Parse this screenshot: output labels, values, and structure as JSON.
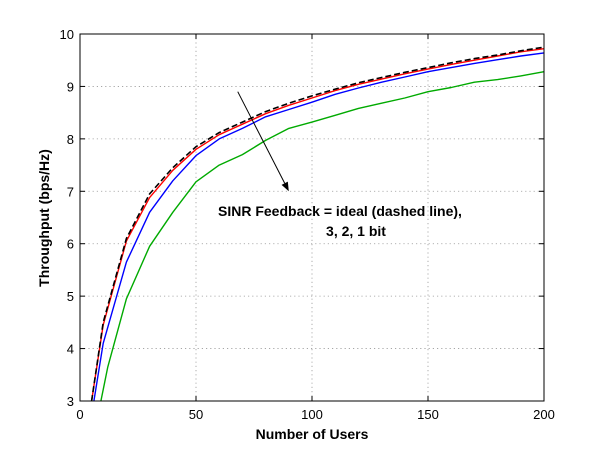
{
  "chart_data": {
    "type": "line",
    "title": "",
    "xlabel": "Number of Users",
    "ylabel": "Throughput (bps/Hz)",
    "xlim": [
      0,
      200
    ],
    "ylim": [
      3,
      10
    ],
    "xticks": [
      0,
      50,
      100,
      150,
      200
    ],
    "yticks": [
      3,
      4,
      5,
      6,
      7,
      8,
      9,
      10
    ],
    "grid": true,
    "annotation": {
      "lines": [
        "SINR Feedback = ideal (dashed line),",
        "3, 2, 1 bit"
      ],
      "arrow_from": [
        68,
        8.9
      ],
      "arrow_to": [
        90,
        7.0
      ]
    },
    "series": [
      {
        "color": "#000000",
        "dashed": true,
        "x": [
          5,
          10,
          20,
          30,
          40,
          50,
          60,
          70,
          80,
          90,
          100,
          110,
          120,
          130,
          140,
          150,
          160,
          170,
          180,
          190,
          200
        ],
        "y": [
          3.0,
          4.5,
          6.1,
          6.95,
          7.45,
          7.85,
          8.12,
          8.32,
          8.52,
          8.68,
          8.82,
          8.95,
          9.07,
          9.17,
          9.27,
          9.36,
          9.45,
          9.53,
          9.6,
          9.68,
          9.75
        ]
      },
      {
        "color": "#ff0000",
        "dashed": false,
        "x": [
          5,
          10,
          20,
          30,
          40,
          50,
          60,
          70,
          80,
          90,
          100,
          110,
          120,
          130,
          140,
          150,
          160,
          170,
          180,
          190,
          200
        ],
        "y": [
          3.0,
          4.45,
          6.05,
          6.88,
          7.4,
          7.8,
          8.08,
          8.28,
          8.48,
          8.64,
          8.78,
          8.92,
          9.04,
          9.14,
          9.24,
          9.33,
          9.42,
          9.5,
          9.58,
          9.66,
          9.72
        ]
      },
      {
        "color": "#0000ff",
        "dashed": false,
        "x": [
          6,
          10,
          20,
          30,
          40,
          50,
          60,
          70,
          80,
          90,
          100,
          110,
          120,
          130,
          140,
          150,
          160,
          170,
          180,
          190,
          200
        ],
        "y": [
          3.0,
          4.1,
          5.65,
          6.6,
          7.2,
          7.68,
          8.0,
          8.2,
          8.42,
          8.56,
          8.7,
          8.85,
          8.97,
          9.08,
          9.18,
          9.28,
          9.36,
          9.44,
          9.51,
          9.58,
          9.64
        ]
      },
      {
        "color": "#00aa00",
        "dashed": false,
        "x": [
          9,
          12,
          20,
          30,
          40,
          50,
          60,
          70,
          80,
          90,
          100,
          110,
          120,
          130,
          140,
          150,
          160,
          170,
          180,
          190,
          200
        ],
        "y": [
          3.0,
          3.65,
          4.95,
          5.95,
          6.6,
          7.18,
          7.5,
          7.7,
          7.97,
          8.2,
          8.32,
          8.45,
          8.58,
          8.68,
          8.78,
          8.9,
          8.98,
          9.08,
          9.13,
          9.2,
          9.28
        ]
      }
    ]
  }
}
